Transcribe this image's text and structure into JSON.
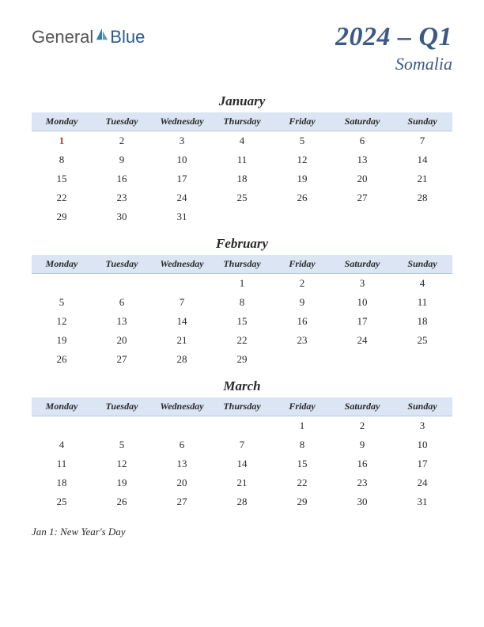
{
  "logo": {
    "text1": "General",
    "text2": "Blue"
  },
  "title": {
    "main": "2024 – Q1",
    "sub": "Somalia"
  },
  "weekdays": [
    "Monday",
    "Tuesday",
    "Wednesday",
    "Thursday",
    "Friday",
    "Saturday",
    "Sunday"
  ],
  "colors": {
    "header_bg": "#dbe5f3",
    "title_color": "#3a5a85",
    "holiday_color": "#c0392b"
  },
  "months": [
    {
      "name": "January",
      "weeks": [
        [
          {
            "d": "1",
            "h": true
          },
          {
            "d": "2"
          },
          {
            "d": "3"
          },
          {
            "d": "4"
          },
          {
            "d": "5"
          },
          {
            "d": "6"
          },
          {
            "d": "7"
          }
        ],
        [
          {
            "d": "8"
          },
          {
            "d": "9"
          },
          {
            "d": "10"
          },
          {
            "d": "11"
          },
          {
            "d": "12"
          },
          {
            "d": "13"
          },
          {
            "d": "14"
          }
        ],
        [
          {
            "d": "15"
          },
          {
            "d": "16"
          },
          {
            "d": "17"
          },
          {
            "d": "18"
          },
          {
            "d": "19"
          },
          {
            "d": "20"
          },
          {
            "d": "21"
          }
        ],
        [
          {
            "d": "22"
          },
          {
            "d": "23"
          },
          {
            "d": "24"
          },
          {
            "d": "25"
          },
          {
            "d": "26"
          },
          {
            "d": "27"
          },
          {
            "d": "28"
          }
        ],
        [
          {
            "d": "29"
          },
          {
            "d": "30"
          },
          {
            "d": "31"
          },
          {
            "d": ""
          },
          {
            "d": ""
          },
          {
            "d": ""
          },
          {
            "d": ""
          }
        ]
      ]
    },
    {
      "name": "February",
      "weeks": [
        [
          {
            "d": ""
          },
          {
            "d": ""
          },
          {
            "d": ""
          },
          {
            "d": "1"
          },
          {
            "d": "2"
          },
          {
            "d": "3"
          },
          {
            "d": "4"
          }
        ],
        [
          {
            "d": "5"
          },
          {
            "d": "6"
          },
          {
            "d": "7"
          },
          {
            "d": "8"
          },
          {
            "d": "9"
          },
          {
            "d": "10"
          },
          {
            "d": "11"
          }
        ],
        [
          {
            "d": "12"
          },
          {
            "d": "13"
          },
          {
            "d": "14"
          },
          {
            "d": "15"
          },
          {
            "d": "16"
          },
          {
            "d": "17"
          },
          {
            "d": "18"
          }
        ],
        [
          {
            "d": "19"
          },
          {
            "d": "20"
          },
          {
            "d": "21"
          },
          {
            "d": "22"
          },
          {
            "d": "23"
          },
          {
            "d": "24"
          },
          {
            "d": "25"
          }
        ],
        [
          {
            "d": "26"
          },
          {
            "d": "27"
          },
          {
            "d": "28"
          },
          {
            "d": "29"
          },
          {
            "d": ""
          },
          {
            "d": ""
          },
          {
            "d": ""
          }
        ]
      ]
    },
    {
      "name": "March",
      "weeks": [
        [
          {
            "d": ""
          },
          {
            "d": ""
          },
          {
            "d": ""
          },
          {
            "d": ""
          },
          {
            "d": "1"
          },
          {
            "d": "2"
          },
          {
            "d": "3"
          }
        ],
        [
          {
            "d": "4"
          },
          {
            "d": "5"
          },
          {
            "d": "6"
          },
          {
            "d": "7"
          },
          {
            "d": "8"
          },
          {
            "d": "9"
          },
          {
            "d": "10"
          }
        ],
        [
          {
            "d": "11"
          },
          {
            "d": "12"
          },
          {
            "d": "13"
          },
          {
            "d": "14"
          },
          {
            "d": "15"
          },
          {
            "d": "16"
          },
          {
            "d": "17"
          }
        ],
        [
          {
            "d": "18"
          },
          {
            "d": "19"
          },
          {
            "d": "20"
          },
          {
            "d": "21"
          },
          {
            "d": "22"
          },
          {
            "d": "23"
          },
          {
            "d": "24"
          }
        ],
        [
          {
            "d": "25"
          },
          {
            "d": "26"
          },
          {
            "d": "27"
          },
          {
            "d": "28"
          },
          {
            "d": "29"
          },
          {
            "d": "30"
          },
          {
            "d": "31"
          }
        ]
      ]
    }
  ],
  "holidays": [
    "Jan 1: New Year's Day"
  ]
}
